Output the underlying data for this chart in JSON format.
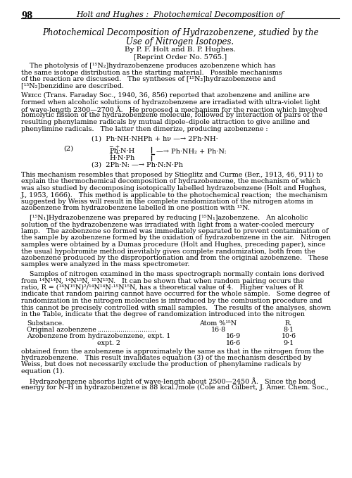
{
  "page_number": "98",
  "header": "Holt and Hughes :  Photochemical Decomposition of",
  "title_line1": "Photochemical Decomposition of Hydrazobenzene, studied by the",
  "title_line2": "Use of Nitrogen Isotopes.",
  "authors": "By P. F. Holt and B. P. Hughes.",
  "reprint": "[Reprint Order No. 5765.]",
  "abstract_lines": [
    "    The photolysis of [¹⁵N₂]hydrazobenzene produces azobenzene which has",
    "the same isotope distribution as the starting material.   Possible mechanisms",
    "of the reaction are discussed.   The syntheses of [¹⁵N₂]hydrazobenzene and",
    "[¹⁵N₂]benzidine are described."
  ],
  "para1_lines": [
    "Wᴇɪᴄᴄ (Trans. Faraday Soc., 1940, 36, 856) reported that azobenzene and aniline are",
    "formed when alcoholic solutions of hydrazobenzene are irradiated with ultra-violet light",
    "of wave-length 2300—2700 Å.   He proposed a mechanism for the reaction which involved",
    "homolytic fission of the hydrazobenzene molecule, followed by interaction of pairs of the",
    "resulting phenylamine radicals by mutual dipole–dipole attraction to give aniline and",
    "phenylimine radicals.   The latter then dimerize, producing azobenzene :"
  ],
  "eq1": "(1)  Ph·NH·NHPh + hν —→ 2Ph·NH·",
  "eq2_label": "(2)",
  "eq2_top": "Ph·N·H",
  "eq2_top_sup": "− −+",
  "eq2_bot": "H·N·Ph",
  "eq2_bot_sup": "+− −",
  "eq2_right": "—→ Ph·NH₂ + Ph·N:",
  "eq3": "(3)  2Ph·N: —→ Ph·N:N·Ph",
  "para2_lines": [
    "This mechanism resembles that proposed by Stieglitz and Curme (Ber., 1913, 46, 911) to",
    "explain the thermochemical decomposition of hydrazobenzene, the mechanism of which",
    "was also studied by decomposing isotopically labelled hydrazobenzene (Holt and Hughes,",
    "J., 1953, 1666).   This method is applicable to the photochemical reaction;  the mechanism",
    "suggested by Weiss will result in the complete randomization of the nitrogen atoms in",
    "azobenzene from hydrazobenzene labelled in one position with ¹⁵N."
  ],
  "para3_lines": [
    "    [¹⁵N₁]Hydrazobenzene was prepared by reducing [¹⁵N₁]azobenzene.   An alcoholic",
    "solution of the hydrazobenzene was irradiated with light from a water-cooled mercury",
    "lamp.   The azobenzene so formed was immediately separated to prevent contamination of",
    "the sample by azobenzene formed by the oxidation of hydrazobenzene in the air.   Nitrogen",
    "samples were obtained by a Dumas procedure (Holt and Hughes, preceding paper), since",
    "the usual hypobromite method inevitably gives complete randomization, both from the",
    "azobenzene produced by the disproportionation and from the original azobenzene.   These",
    "samples were analyzed in the mass spectrometer."
  ],
  "para4_lines": [
    "    Samples of nitrogen examined in the mass spectrograph normally contain ions derived",
    "from ¹⁴N¹⁴N, ¹⁴N¹⁵N, ¹⁵N¹⁵N.   It can be shown that when random pairing occurs the",
    "ratio, R = (¹⁴N¹⁵N)²/¹⁴N¹⁴N·¹⁵N¹⁵N, has a theoretical value of 4.   Higher values of R",
    "indicate that random pairing cannot have occurred for the whole sample.   Some degree of",
    "randomization in the nitrogen molecules is introduced by the combustion procedure and",
    "this cannot be precisely controlled with small samples.   The results of the analyses, shown",
    "in the Table, indicate that the degree of randomization introduced into the nitrogen"
  ],
  "para5_lines": [
    "obtained from the azobenzene is approximately the same as that in the nitrogen from the",
    "hydrazobenzene.   This result invalidates equation (3) of the mechanism described by",
    "Weiss, but does not necessarily exclude the production of phenylamine radicals by",
    "equation (1)."
  ],
  "para6_lines": [
    "    Hydrazobenzene absorbs light of wave-length about 2500—2450 Å.   Since the bond",
    "energy for N–H in hydrazobenzene is 88 kcal./mole (Cole and Gilbert, J. Amer. Chem. Soc.,"
  ],
  "bg_color": "#ffffff",
  "text_color": "#000000"
}
